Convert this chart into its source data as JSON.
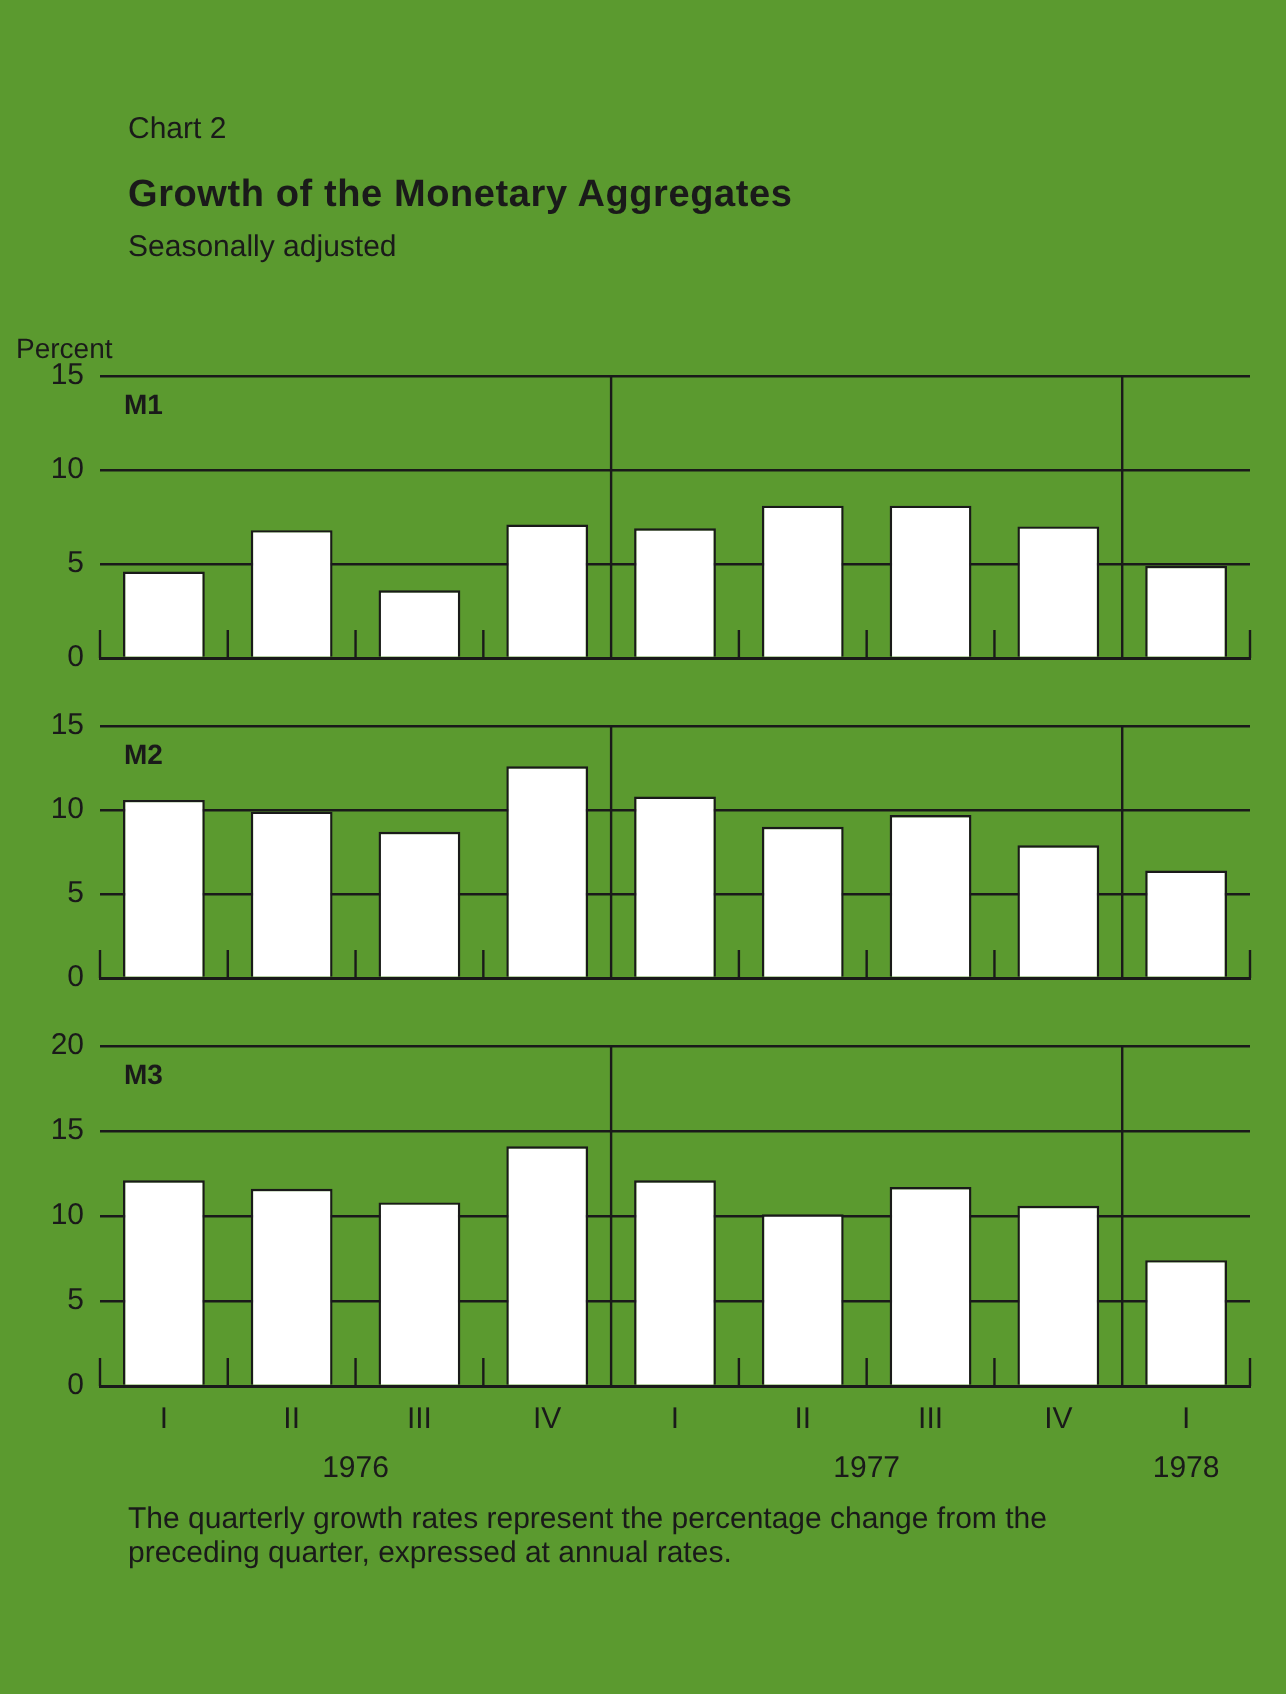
{
  "chart_data": [
    {
      "type": "bar",
      "title": "Growth of the Monetary Aggregates",
      "subtitle": "Seasonally adjusted",
      "annotations": [
        "Chart 2"
      ],
      "ylabel": "Percent",
      "categories": [
        null,
        null,
        null,
        null,
        null,
        null,
        null,
        null,
        null
      ],
      "series": [
        {
          "name": "M1",
          "color": "#ffffff",
          "values": [
            4.6,
            6.8,
            3.6,
            7.1,
            6.9,
            8.1,
            8.1,
            7.0,
            4.9
          ]
        }
      ],
      "ylim": [
        0,
        15
      ],
      "yticks": [
        0,
        5,
        10,
        15
      ],
      "grid": "y",
      "legend": false,
      "tick_labels": "y"
    },
    {
      "type": "bar",
      "categories": [
        null,
        null,
        null,
        null,
        null,
        null,
        null,
        null,
        null
      ],
      "series": [
        {
          "name": "M2",
          "color": "#ffffff",
          "values": [
            10.6,
            9.9,
            8.7,
            12.6,
            10.8,
            9.0,
            9.7,
            7.9,
            6.4
          ]
        }
      ],
      "ylim": [
        0,
        15
      ],
      "yticks": [
        0,
        5,
        10,
        15
      ],
      "grid": "y",
      "legend": false,
      "tick_labels": "y"
    },
    {
      "type": "bar",
      "categories": [
        "I",
        "II",
        "III",
        "IV",
        "I",
        "II",
        "III",
        "IV",
        "I"
      ],
      "series": [
        {
          "name": "M3",
          "color": "#ffffff",
          "values": [
            12.1,
            11.6,
            10.8,
            14.1,
            12.1,
            10.1,
            11.7,
            10.6,
            7.4
          ]
        }
      ],
      "ylim": [
        0,
        20
      ],
      "yticks": [
        0,
        5,
        10,
        15,
        20
      ],
      "grid": "y",
      "legend": false,
      "annotations": [
        "1976",
        "1977",
        "1978",
        "The quarterly growth rates represent the percentage change from the preceding quarter, expressed at annual rates."
      ]
    }
  ]
}
